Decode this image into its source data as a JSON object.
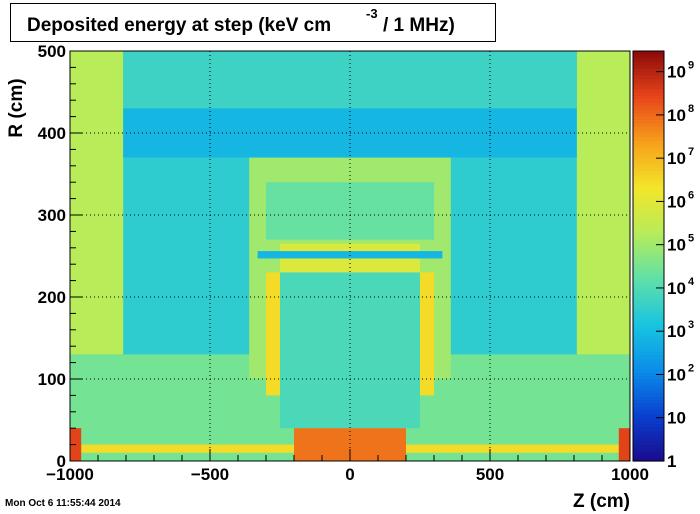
{
  "chart_data": {
    "type": "heatmap",
    "title": "Deposited energy at step (keV cm",
    "title_exponent": "-3",
    "title_tail": "/ 1 MHz)",
    "xlabel": "Z (cm)",
    "ylabel": "R (cm)",
    "xlim": [
      -1000,
      1000
    ],
    "ylim": [
      0,
      500
    ],
    "x_ticks": [
      "−1000",
      "−500",
      "0",
      "500",
      "1000"
    ],
    "x_tick_values": [
      -1000,
      -500,
      0,
      500,
      1000
    ],
    "y_ticks": [
      "0",
      "100",
      "200",
      "300",
      "400",
      "500"
    ],
    "y_tick_values": [
      0,
      100,
      200,
      300,
      400,
      500
    ],
    "grid": true,
    "colorbar": {
      "scale": "log",
      "range": [
        1,
        3000000000.0
      ],
      "labels": [
        {
          "base": "1",
          "exp": "",
          "value": 1
        },
        {
          "base": "10",
          "exp": "",
          "value": 10
        },
        {
          "base": "10",
          "exp": "2",
          "value": 100
        },
        {
          "base": "10",
          "exp": "3",
          "value": 1000
        },
        {
          "base": "10",
          "exp": "4",
          "value": 10000
        },
        {
          "base": "10",
          "exp": "5",
          "value": 100000
        },
        {
          "base": "10",
          "exp": "6",
          "value": 1000000
        },
        {
          "base": "10",
          "exp": "7",
          "value": 10000000
        },
        {
          "base": "10",
          "exp": "8",
          "value": 100000000
        },
        {
          "base": "10",
          "exp": "9",
          "value": 1000000000
        }
      ],
      "colors": [
        "#1a0a8c",
        "#0a3fd0",
        "#0a8ee8",
        "#19c4e0",
        "#5fe0a8",
        "#b6ec5a",
        "#f3e62a",
        "#f7a01a",
        "#e8461a",
        "#8c0a0a"
      ]
    },
    "regions": [
      {
        "z": [
          -1000,
          1000
        ],
        "r": [
          0,
          500
        ],
        "value": 3000
      },
      {
        "z": [
          -1000,
          1000
        ],
        "r": [
          130,
          370
        ],
        "value": 3000
      },
      {
        "z": [
          -1000,
          1000
        ],
        "r": [
          0,
          130
        ],
        "value": 30000
      },
      {
        "z": [
          -1000,
          -810
        ],
        "r": [
          130,
          500
        ],
        "value": 200000
      },
      {
        "z": [
          810,
          1000
        ],
        "r": [
          130,
          500
        ],
        "value": 200000
      },
      {
        "z": [
          -810,
          810
        ],
        "r": [
          430,
          500
        ],
        "value": 5000
      },
      {
        "z": [
          -810,
          810
        ],
        "r": [
          370,
          430
        ],
        "value": 800
      },
      {
        "z": [
          -360,
          360
        ],
        "r": [
          100,
          370
        ],
        "value": 100000
      },
      {
        "z": [
          -300,
          300
        ],
        "r": [
          270,
          340
        ],
        "value": 20000
      },
      {
        "z": [
          -250,
          250
        ],
        "r": [
          40,
          230
        ],
        "value": 8000
      },
      {
        "z": [
          -250,
          250
        ],
        "r": [
          230,
          265
        ],
        "value": 800000
      },
      {
        "z": [
          -330,
          330
        ],
        "r": [
          247,
          256
        ],
        "value": 800
      },
      {
        "z": [
          -300,
          -250
        ],
        "r": [
          80,
          230
        ],
        "value": 3000000
      },
      {
        "z": [
          250,
          300
        ],
        "r": [
          80,
          230
        ],
        "value": 3000000
      },
      {
        "z": [
          -960,
          -200
        ],
        "r": [
          10,
          20
        ],
        "value": 3000000
      },
      {
        "z": [
          200,
          960
        ],
        "r": [
          10,
          20
        ],
        "value": 3000000
      },
      {
        "z": [
          -200,
          200
        ],
        "r": [
          0,
          40
        ],
        "value": 80000000
      },
      {
        "z": [
          -1000,
          -960
        ],
        "r": [
          0,
          40
        ],
        "value": 300000000
      },
      {
        "z": [
          960,
          1000
        ],
        "r": [
          0,
          40
        ],
        "value": 300000000
      }
    ]
  },
  "timestamp": "Mon Oct  6 11:55:44 2014"
}
